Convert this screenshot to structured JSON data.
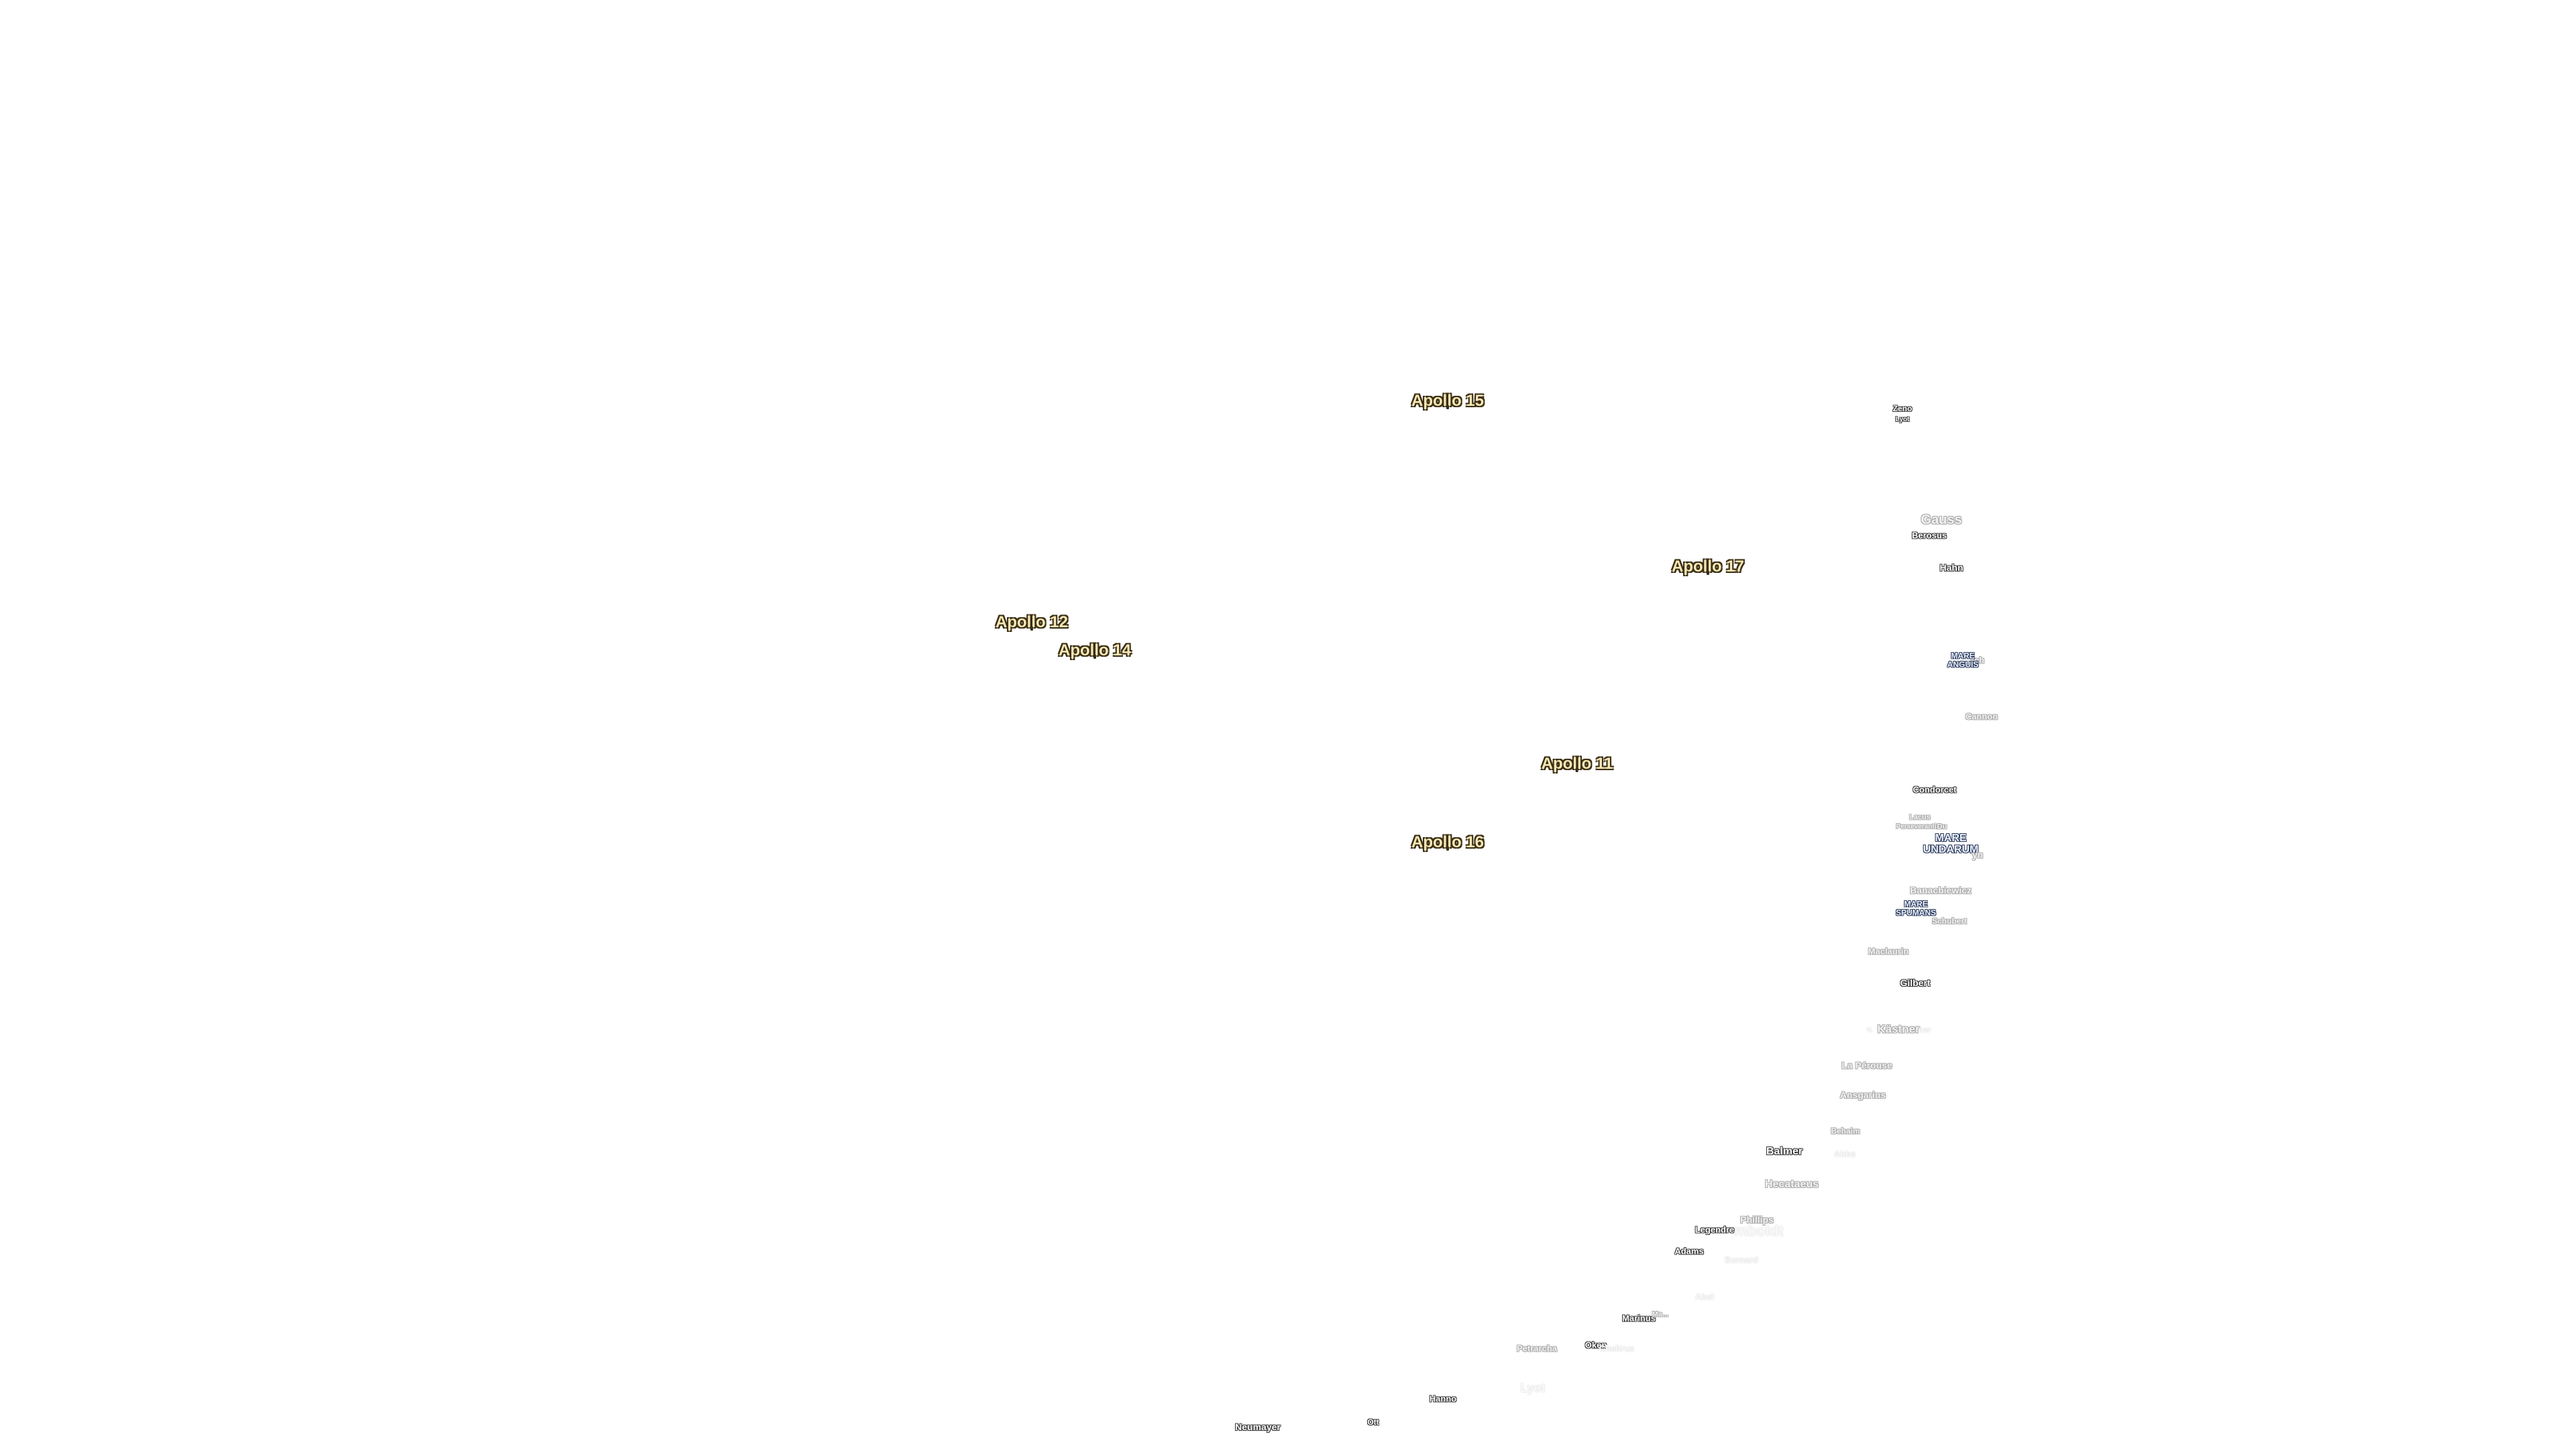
{
  "apollo_sites": {
    "a15": "Apollo 15",
    "a17": "Apollo 17",
    "a12": "Apollo 12",
    "a14": "Apollo 14",
    "a11": "Apollo 11",
    "a16": "Apollo 16"
  },
  "maria": {
    "anguis_1": "MARE",
    "anguis_2": "ANGUIS",
    "undarum_1": "MARE",
    "undarum_2": "UNDARUM",
    "spumans_1": "MARE",
    "spumans_2": "SPUMANS"
  },
  "craters": {
    "zeno": "Zeno",
    "lyot_small": "Lyot",
    "gauss": "Gauss",
    "berosus": "Berosus",
    "hahn": "Hahn",
    "burckhardt_frag": "rch",
    "cannon": "Cannon",
    "condorcet": "Condorcet",
    "lacus": "Lacus",
    "perseverantiae": "Perseverantiae",
    "dubyago_frag": "Du",
    "kapteyn_frag": "yn",
    "banachiewicz": "Banachiewicz",
    "schubert": "Schubert",
    "maclaurin": "Maclaurin",
    "gilbert": "Gilbert",
    "kastner": "Kästner",
    "kastner_left": "v.",
    "kastner_right": "ner",
    "la_perouse": "La Pérouse",
    "ansgarius": "Ansgarius",
    "behaim": "Behaim",
    "balmer": "Balmer",
    "abbe": "Abbe",
    "hecataeus": "Hecataeus",
    "phillips": "Phillips",
    "humboldt": "mboldt",
    "legendre": "Legendre",
    "adams": "Adams",
    "bernard": "Bernard",
    "abel": "Abel",
    "marinus": "Marinus",
    "marinus_frag": "Ma...",
    "petrarcha": "Petrarcha",
    "oken": "Oken",
    "oken_frag": "Cheltrus",
    "lyot": "Lyot",
    "hanno": "Hanno",
    "neumayer": "Neumayer",
    "ott": "Ott"
  }
}
